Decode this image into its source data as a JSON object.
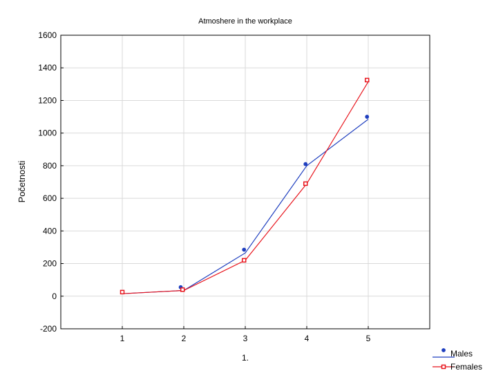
{
  "chart_data": {
    "type": "scatter",
    "title": "Atmoshere in the workplace",
    "xlabel": "1.",
    "ylabel": "Početnosti",
    "xlim": [
      0,
      6
    ],
    "ylim": [
      -200,
      1600
    ],
    "x_ticks": [
      1,
      2,
      3,
      4,
      5
    ],
    "y_ticks": [
      -200,
      0,
      200,
      400,
      600,
      800,
      1000,
      1200,
      1400,
      1600
    ],
    "grid": true,
    "legend_position": "bottom-right",
    "series": [
      {
        "name": "Males",
        "color": "#1f3fbf",
        "marker": "circle",
        "points": [
          [
            1,
            25
          ],
          [
            1.95,
            55
          ],
          [
            2.98,
            285
          ],
          [
            3.98,
            810
          ],
          [
            4.98,
            1100
          ]
        ],
        "fit_line": [
          [
            1,
            15
          ],
          [
            2,
            35
          ],
          [
            3,
            265
          ],
          [
            4,
            800
          ],
          [
            5,
            1085
          ]
        ]
      },
      {
        "name": "Females",
        "color": "#e8141c",
        "marker": "square",
        "points": [
          [
            1,
            25
          ],
          [
            1.98,
            40
          ],
          [
            2.98,
            220
          ],
          [
            3.98,
            690
          ],
          [
            4.98,
            1325
          ]
        ],
        "fit_line": [
          [
            1,
            15
          ],
          [
            2,
            35
          ],
          [
            3,
            220
          ],
          [
            4,
            690
          ],
          [
            5,
            1315
          ]
        ]
      }
    ]
  }
}
